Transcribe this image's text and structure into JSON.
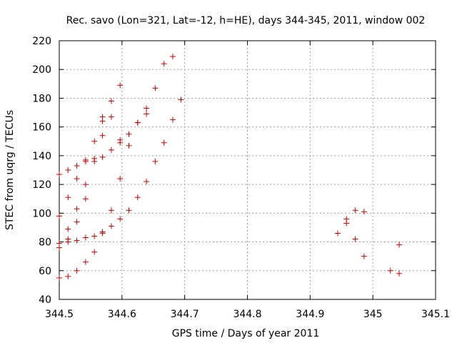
{
  "chart_data": {
    "type": "scatter",
    "title": "Rec. savo (Lon=321, Lat=-12, h=HE), days 344-345, 2011, window 002",
    "xlabel": "GPS time / Days of year 2011",
    "ylabel": "STEC from uqrg / TECUs",
    "xlim": [
      344.5,
      345.1
    ],
    "ylim": [
      40,
      220
    ],
    "xticks": [
      "344.5",
      "344.6",
      "344.7",
      "344.8",
      "344.9",
      "345",
      "345.1"
    ],
    "xtick_values": [
      344.5,
      344.6,
      344.7,
      344.8,
      344.9,
      345.0,
      345.1
    ],
    "yticks": [
      "40",
      "60",
      "80",
      "100",
      "120",
      "140",
      "160",
      "180",
      "200",
      "220"
    ],
    "ytick_values": [
      40,
      60,
      80,
      100,
      120,
      140,
      160,
      180,
      200,
      220
    ],
    "grid": true,
    "marker": "+",
    "color": "#cc0000",
    "series": [
      {
        "name": "STEC",
        "points": [
          [
            344.5,
            127
          ],
          [
            344.5,
            98
          ],
          [
            344.5,
            79
          ],
          [
            344.5,
            76
          ],
          [
            344.5,
            55
          ],
          [
            344.514,
            130
          ],
          [
            344.514,
            111
          ],
          [
            344.514,
            89
          ],
          [
            344.514,
            82
          ],
          [
            344.514,
            80
          ],
          [
            344.514,
            56
          ],
          [
            344.528,
            133
          ],
          [
            344.528,
            124
          ],
          [
            344.528,
            103
          ],
          [
            344.528,
            94
          ],
          [
            344.528,
            81
          ],
          [
            344.528,
            60
          ],
          [
            344.542,
            137
          ],
          [
            344.542,
            136
          ],
          [
            344.542,
            120
          ],
          [
            344.542,
            110
          ],
          [
            344.542,
            83
          ],
          [
            344.542,
            66
          ],
          [
            344.556,
            150
          ],
          [
            344.556,
            138
          ],
          [
            344.556,
            136
          ],
          [
            344.556,
            84
          ],
          [
            344.556,
            73
          ],
          [
            344.569,
            167
          ],
          [
            344.569,
            164
          ],
          [
            344.569,
            154
          ],
          [
            344.569,
            139
          ],
          [
            344.569,
            87
          ],
          [
            344.569,
            86
          ],
          [
            344.583,
            178
          ],
          [
            344.583,
            167
          ],
          [
            344.583,
            144
          ],
          [
            344.583,
            102
          ],
          [
            344.583,
            91
          ],
          [
            344.597,
            189
          ],
          [
            344.597,
            151
          ],
          [
            344.597,
            149
          ],
          [
            344.597,
            124
          ],
          [
            344.597,
            96
          ],
          [
            344.611,
            155
          ],
          [
            344.611,
            147
          ],
          [
            344.611,
            102
          ],
          [
            344.625,
            163
          ],
          [
            344.625,
            163
          ],
          [
            344.625,
            111
          ],
          [
            344.639,
            173
          ],
          [
            344.639,
            169
          ],
          [
            344.639,
            122
          ],
          [
            344.653,
            187
          ],
          [
            344.653,
            136
          ],
          [
            344.667,
            204
          ],
          [
            344.667,
            149
          ],
          [
            344.681,
            209
          ],
          [
            344.681,
            165
          ],
          [
            344.694,
            179
          ],
          [
            344.944,
            86
          ],
          [
            344.958,
            96
          ],
          [
            344.958,
            93
          ],
          [
            344.972,
            102
          ],
          [
            344.972,
            82
          ],
          [
            344.986,
            101
          ],
          [
            344.986,
            70
          ],
          [
            345.028,
            60
          ],
          [
            345.042,
            78
          ],
          [
            345.042,
            58
          ]
        ]
      }
    ]
  }
}
